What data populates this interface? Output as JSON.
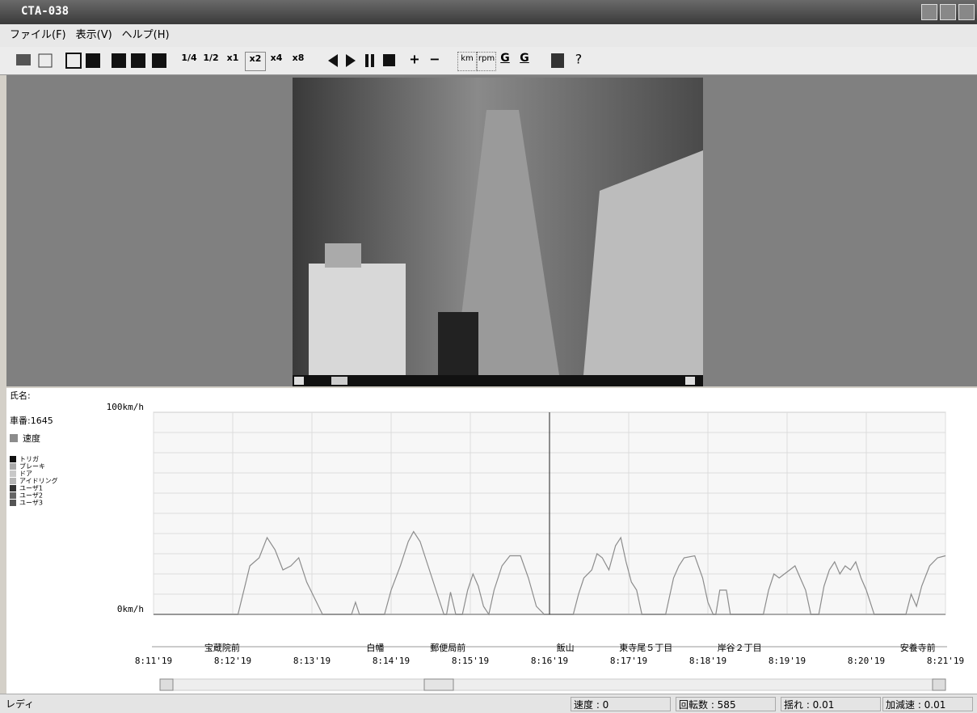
{
  "window": {
    "title": "CTA-038"
  },
  "menu": [
    "ファイル(F)",
    "表示(V)",
    "ヘルプ(H)"
  ],
  "toolbar": {
    "speeds": [
      "1/4",
      "1/2",
      "x1",
      "x2",
      "x4",
      "x8"
    ],
    "units": [
      "km",
      "rpm",
      "G",
      "G"
    ]
  },
  "panel": {
    "name_label": "氏名:",
    "vehicle": "車番:1645"
  },
  "status": [
    "レディ",
    "速度 : 0",
    "回転数 : 585",
    "揺れ : 0.01",
    "加減速 : 0.01"
  ],
  "chart_data": {
    "type": "line",
    "x": [
      0,
      64,
      73,
      80,
      86,
      92,
      98,
      104,
      110,
      116,
      122,
      128,
      150,
      153,
      156,
      175,
      180,
      187,
      193,
      197,
      202,
      208,
      214,
      220,
      222,
      225,
      229,
      234,
      238,
      242,
      246,
      250,
      254,
      258,
      264,
      270,
      278,
      284,
      290,
      296,
      318,
      322,
      326,
      332,
      336,
      340,
      345,
      350,
      354,
      358,
      362,
      366,
      370,
      388,
      394,
      398,
      402,
      410,
      416,
      420,
      424,
      426,
      429,
      434,
      437,
      462,
      466,
      470,
      474,
      478,
      482,
      486,
      490,
      494,
      498,
      504,
      508,
      512,
      516,
      520,
      524,
      528,
      532,
      536,
      540,
      546,
      570,
      574,
      578,
      582,
      588,
      594,
      600
    ],
    "series": [
      {
        "name": "速度",
        "color": "#8c8c8c",
        "values": [
          0,
          0,
          24,
          28,
          38,
          32,
          22,
          24,
          28,
          16,
          8,
          0,
          0,
          6,
          0,
          0,
          12,
          24,
          36,
          41,
          36,
          24,
          12,
          0,
          0,
          11,
          0,
          0,
          12,
          20,
          14,
          4,
          0,
          12,
          24,
          29,
          29,
          18,
          4,
          0,
          0,
          10,
          18,
          22,
          30,
          28,
          22,
          34,
          38,
          26,
          16,
          12,
          0,
          0,
          18,
          24,
          28,
          29,
          18,
          6,
          0,
          0,
          12,
          12,
          0,
          0,
          12,
          20,
          18,
          20,
          22,
          24,
          18,
          12,
          0,
          0,
          14,
          22,
          26,
          20,
          24,
          22,
          26,
          18,
          12,
          0,
          0,
          10,
          4,
          14,
          24,
          28,
          29
        ]
      }
    ],
    "event_legend": [
      {
        "name": "トリガ",
        "color": "#111111"
      },
      {
        "name": "ブレーキ",
        "color": "#aaaaaa"
      },
      {
        "name": "ドア",
        "color": "#c8c8c8"
      },
      {
        "name": "アイドリング",
        "color": "#b5b5b5"
      },
      {
        "name": "ユーザ1",
        "color": "#333333"
      },
      {
        "name": "ユーザ2",
        "color": "#666666"
      },
      {
        "name": "ユーザ3",
        "color": "#555555"
      }
    ],
    "xlim": [
      0,
      600
    ],
    "xticks": [
      {
        "value": 0,
        "label": "8:11'19"
      },
      {
        "value": 60,
        "label": "8:12'19"
      },
      {
        "value": 120,
        "label": "8:13'19"
      },
      {
        "value": 180,
        "label": "8:14'19"
      },
      {
        "value": 240,
        "label": "8:15'19"
      },
      {
        "value": 300,
        "label": "8:16'19"
      },
      {
        "value": 360,
        "label": "8:17'19"
      },
      {
        "value": 420,
        "label": "8:18'19"
      },
      {
        "value": 480,
        "label": "8:19'19"
      },
      {
        "value": 540,
        "label": "8:20'19"
      },
      {
        "value": 600,
        "label": "8:21'19"
      }
    ],
    "ylim": [
      0,
      100
    ],
    "yticks": [
      {
        "value": 0,
        "label": "0km/h"
      },
      {
        "value": 100,
        "label": "100km/h"
      }
    ],
    "grid_y": [
      10,
      20,
      30,
      40,
      50,
      60,
      70,
      80,
      90
    ],
    "cursor_x": 300,
    "stations": [
      {
        "name": "宝蔵院前",
        "x": 52
      },
      {
        "name": "白幡",
        "x": 168
      },
      {
        "name": "郵便局前",
        "x": 223
      },
      {
        "name": "飯山",
        "x": 312
      },
      {
        "name": "東寺尾５丁目",
        "x": 373
      },
      {
        "name": "岸谷２丁目",
        "x": 444
      },
      {
        "name": "安養寺前",
        "x": 579
      }
    ]
  }
}
